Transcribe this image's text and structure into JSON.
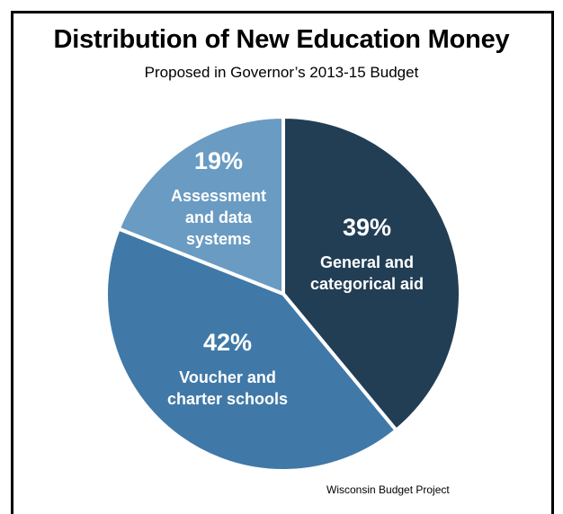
{
  "chart_data": {
    "type": "pie",
    "title": "Distribution of New Education Money",
    "subtitle": "Proposed in Governor’s 2013-15 Budget",
    "slices": [
      {
        "label_lines": [
          "General and",
          "categorical aid"
        ],
        "value": 39,
        "value_label": "39%",
        "color": "#223e55"
      },
      {
        "label_lines": [
          "Voucher and",
          "charter schools"
        ],
        "value": 42,
        "value_label": "42%",
        "color": "#4079a8"
      },
      {
        "label_lines": [
          "Assessment",
          "and data",
          "systems"
        ],
        "value": 19,
        "value_label": "19%",
        "color": "#6a9bc3"
      }
    ],
    "source": "Wisconsin Budget Project"
  }
}
